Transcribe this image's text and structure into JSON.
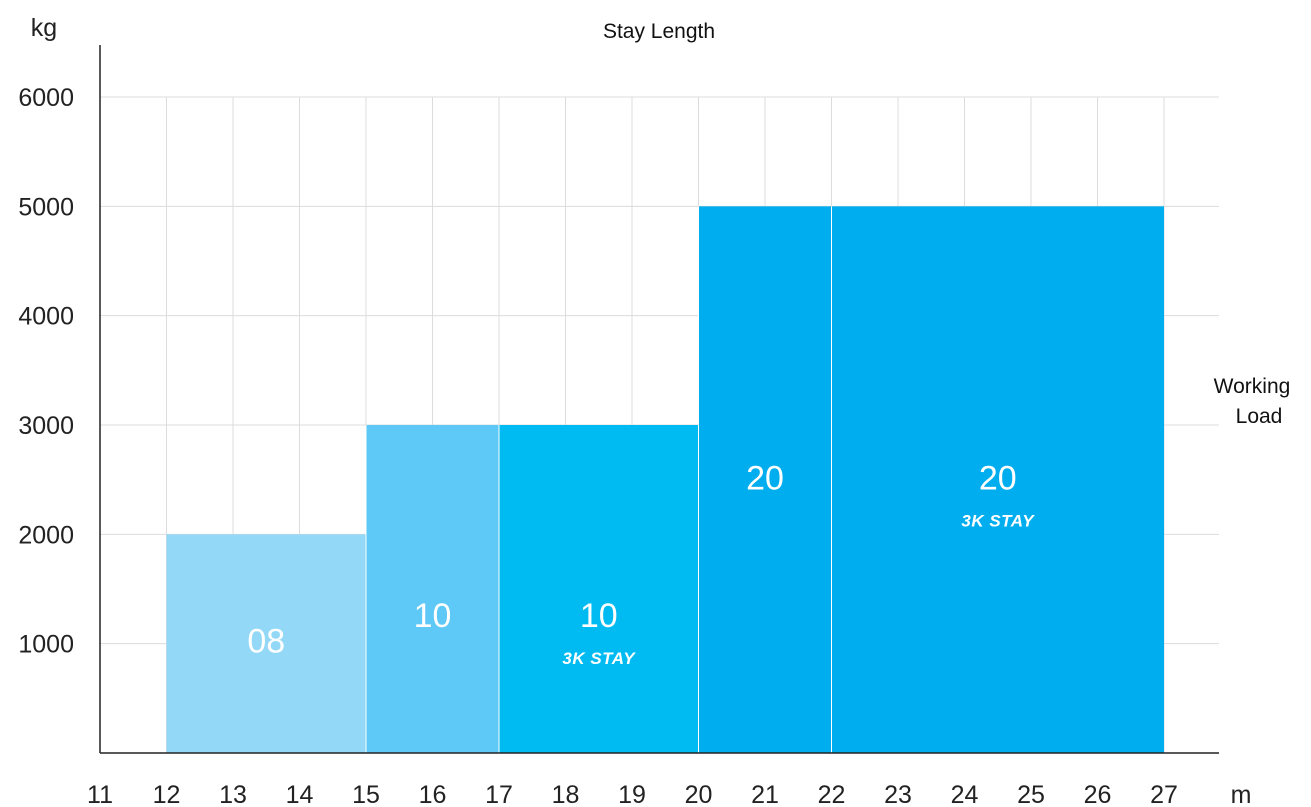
{
  "chart_data": {
    "type": "bar",
    "title": "Stay Length",
    "y_unit": "kg",
    "x_unit": "m",
    "side_label": [
      "Working",
      "Load"
    ],
    "xlim": [
      11,
      27
    ],
    "ylim": [
      0,
      6000
    ],
    "x_ticks": [
      "11",
      "12",
      "13",
      "14",
      "15",
      "16",
      "17",
      "18",
      "19",
      "20",
      "21",
      "22",
      "23",
      "24",
      "25",
      "26",
      "27"
    ],
    "y_ticks": [
      "1000",
      "2000",
      "3000",
      "4000",
      "5000",
      "6000"
    ],
    "grid": true,
    "bars": [
      {
        "x_start": 12,
        "x_end": 15,
        "value": 2000,
        "label": "08",
        "sublabel": "",
        "color": "#93d8f7"
      },
      {
        "x_start": 15,
        "x_end": 17,
        "value": 3000,
        "label": "10",
        "sublabel": "",
        "color": "#5ec8f6"
      },
      {
        "x_start": 17,
        "x_end": 20,
        "value": 3000,
        "label": "10",
        "sublabel": "3K STAY",
        "color": "#00bbf2"
      },
      {
        "x_start": 20,
        "x_end": 22,
        "value": 5000,
        "label": "20",
        "sublabel": "",
        "color": "#00aeef"
      },
      {
        "x_start": 22,
        "x_end": 27,
        "value": 5000,
        "label": "20",
        "sublabel": "3K STAY",
        "color": "#00aeef"
      }
    ]
  }
}
